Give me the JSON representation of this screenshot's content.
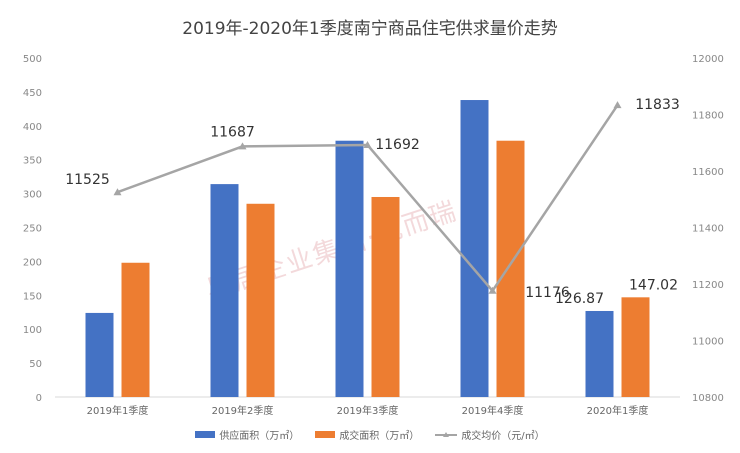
{
  "chart_data": {
    "type": "bar",
    "title": "2019年-2020年1季度南宁商品住宅供求量价走势",
    "categories": [
      "2019年1季度",
      "2019年2季度",
      "2019年3季度",
      "2019年4季度",
      "2020年1季度"
    ],
    "series": [
      {
        "name": "供应面积（万㎡）",
        "type": "bar",
        "axis": "left",
        "color": "#4472C4",
        "values": [
          124,
          314,
          378,
          438,
          126.87
        ]
      },
      {
        "name": "成交面积（万㎡）",
        "type": "bar",
        "axis": "left",
        "color": "#ED7D31",
        "values": [
          198,
          285,
          295,
          378,
          147.02
        ]
      },
      {
        "name": "成交均价（元/㎡）",
        "type": "line",
        "axis": "right",
        "color": "#A5A5A5",
        "values": [
          11525,
          11687,
          11692,
          11176,
          11833
        ]
      }
    ],
    "data_labels": [
      {
        "series": 2,
        "index": 0,
        "text": "11525"
      },
      {
        "series": 2,
        "index": 1,
        "text": "11687"
      },
      {
        "series": 2,
        "index": 2,
        "text": "11692"
      },
      {
        "series": 2,
        "index": 3,
        "text": "11176"
      },
      {
        "series": 2,
        "index": 4,
        "text": "11833"
      },
      {
        "series": 0,
        "index": 4,
        "text": "126.87"
      },
      {
        "series": 1,
        "index": 4,
        "text": "147.02"
      }
    ],
    "ylim_left": [
      0,
      500
    ],
    "yticks_left": [
      "0",
      "50",
      "100",
      "150",
      "200",
      "250",
      "300",
      "350",
      "400",
      "450",
      "500"
    ],
    "ylim_right": [
      10800,
      12000
    ],
    "yticks_right": [
      "10800",
      "11000",
      "11200",
      "11400",
      "11600",
      "11800",
      "12000"
    ],
    "legend": "bottom",
    "grid": false
  },
  "watermark": "易居企业集团·克而瑞"
}
